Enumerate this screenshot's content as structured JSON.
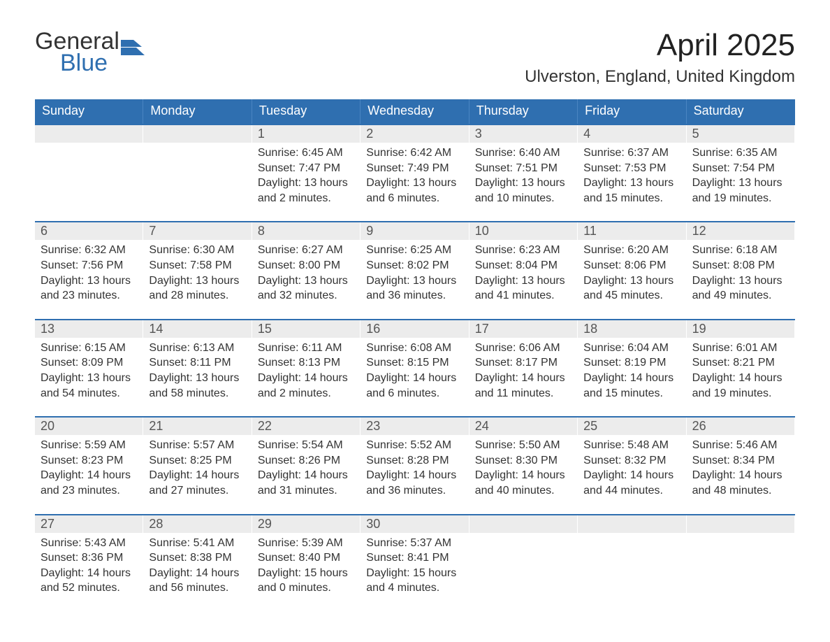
{
  "logo": {
    "word1": "General",
    "word2": "Blue",
    "flag_color": "#2f6fb0"
  },
  "title": "April 2025",
  "location": "Ulverston, England, United Kingdom",
  "colors": {
    "header_bg": "#2f6fb0",
    "header_text": "#ffffff",
    "daynum_bg": "#ececec",
    "daynum_text": "#555555",
    "body_text": "#333333",
    "week_border": "#2f6fb0",
    "background": "#ffffff"
  },
  "weekdays": [
    "Sunday",
    "Monday",
    "Tuesday",
    "Wednesday",
    "Thursday",
    "Friday",
    "Saturday"
  ],
  "weeks": [
    [
      {
        "day": "",
        "lines": []
      },
      {
        "day": "",
        "lines": []
      },
      {
        "day": "1",
        "lines": [
          "Sunrise: 6:45 AM",
          "Sunset: 7:47 PM",
          "Daylight: 13 hours and 2 minutes."
        ]
      },
      {
        "day": "2",
        "lines": [
          "Sunrise: 6:42 AM",
          "Sunset: 7:49 PM",
          "Daylight: 13 hours and 6 minutes."
        ]
      },
      {
        "day": "3",
        "lines": [
          "Sunrise: 6:40 AM",
          "Sunset: 7:51 PM",
          "Daylight: 13 hours and 10 minutes."
        ]
      },
      {
        "day": "4",
        "lines": [
          "Sunrise: 6:37 AM",
          "Sunset: 7:53 PM",
          "Daylight: 13 hours and 15 minutes."
        ]
      },
      {
        "day": "5",
        "lines": [
          "Sunrise: 6:35 AM",
          "Sunset: 7:54 PM",
          "Daylight: 13 hours and 19 minutes."
        ]
      }
    ],
    [
      {
        "day": "6",
        "lines": [
          "Sunrise: 6:32 AM",
          "Sunset: 7:56 PM",
          "Daylight: 13 hours and 23 minutes."
        ]
      },
      {
        "day": "7",
        "lines": [
          "Sunrise: 6:30 AM",
          "Sunset: 7:58 PM",
          "Daylight: 13 hours and 28 minutes."
        ]
      },
      {
        "day": "8",
        "lines": [
          "Sunrise: 6:27 AM",
          "Sunset: 8:00 PM",
          "Daylight: 13 hours and 32 minutes."
        ]
      },
      {
        "day": "9",
        "lines": [
          "Sunrise: 6:25 AM",
          "Sunset: 8:02 PM",
          "Daylight: 13 hours and 36 minutes."
        ]
      },
      {
        "day": "10",
        "lines": [
          "Sunrise: 6:23 AM",
          "Sunset: 8:04 PM",
          "Daylight: 13 hours and 41 minutes."
        ]
      },
      {
        "day": "11",
        "lines": [
          "Sunrise: 6:20 AM",
          "Sunset: 8:06 PM",
          "Daylight: 13 hours and 45 minutes."
        ]
      },
      {
        "day": "12",
        "lines": [
          "Sunrise: 6:18 AM",
          "Sunset: 8:08 PM",
          "Daylight: 13 hours and 49 minutes."
        ]
      }
    ],
    [
      {
        "day": "13",
        "lines": [
          "Sunrise: 6:15 AM",
          "Sunset: 8:09 PM",
          "Daylight: 13 hours and 54 minutes."
        ]
      },
      {
        "day": "14",
        "lines": [
          "Sunrise: 6:13 AM",
          "Sunset: 8:11 PM",
          "Daylight: 13 hours and 58 minutes."
        ]
      },
      {
        "day": "15",
        "lines": [
          "Sunrise: 6:11 AM",
          "Sunset: 8:13 PM",
          "Daylight: 14 hours and 2 minutes."
        ]
      },
      {
        "day": "16",
        "lines": [
          "Sunrise: 6:08 AM",
          "Sunset: 8:15 PM",
          "Daylight: 14 hours and 6 minutes."
        ]
      },
      {
        "day": "17",
        "lines": [
          "Sunrise: 6:06 AM",
          "Sunset: 8:17 PM",
          "Daylight: 14 hours and 11 minutes."
        ]
      },
      {
        "day": "18",
        "lines": [
          "Sunrise: 6:04 AM",
          "Sunset: 8:19 PM",
          "Daylight: 14 hours and 15 minutes."
        ]
      },
      {
        "day": "19",
        "lines": [
          "Sunrise: 6:01 AM",
          "Sunset: 8:21 PM",
          "Daylight: 14 hours and 19 minutes."
        ]
      }
    ],
    [
      {
        "day": "20",
        "lines": [
          "Sunrise: 5:59 AM",
          "Sunset: 8:23 PM",
          "Daylight: 14 hours and 23 minutes."
        ]
      },
      {
        "day": "21",
        "lines": [
          "Sunrise: 5:57 AM",
          "Sunset: 8:25 PM",
          "Daylight: 14 hours and 27 minutes."
        ]
      },
      {
        "day": "22",
        "lines": [
          "Sunrise: 5:54 AM",
          "Sunset: 8:26 PM",
          "Daylight: 14 hours and 31 minutes."
        ]
      },
      {
        "day": "23",
        "lines": [
          "Sunrise: 5:52 AM",
          "Sunset: 8:28 PM",
          "Daylight: 14 hours and 36 minutes."
        ]
      },
      {
        "day": "24",
        "lines": [
          "Sunrise: 5:50 AM",
          "Sunset: 8:30 PM",
          "Daylight: 14 hours and 40 minutes."
        ]
      },
      {
        "day": "25",
        "lines": [
          "Sunrise: 5:48 AM",
          "Sunset: 8:32 PM",
          "Daylight: 14 hours and 44 minutes."
        ]
      },
      {
        "day": "26",
        "lines": [
          "Sunrise: 5:46 AM",
          "Sunset: 8:34 PM",
          "Daylight: 14 hours and 48 minutes."
        ]
      }
    ],
    [
      {
        "day": "27",
        "lines": [
          "Sunrise: 5:43 AM",
          "Sunset: 8:36 PM",
          "Daylight: 14 hours and 52 minutes."
        ]
      },
      {
        "day": "28",
        "lines": [
          "Sunrise: 5:41 AM",
          "Sunset: 8:38 PM",
          "Daylight: 14 hours and 56 minutes."
        ]
      },
      {
        "day": "29",
        "lines": [
          "Sunrise: 5:39 AM",
          "Sunset: 8:40 PM",
          "Daylight: 15 hours and 0 minutes."
        ]
      },
      {
        "day": "30",
        "lines": [
          "Sunrise: 5:37 AM",
          "Sunset: 8:41 PM",
          "Daylight: 15 hours and 4 minutes."
        ]
      },
      {
        "day": "",
        "lines": []
      },
      {
        "day": "",
        "lines": []
      },
      {
        "day": "",
        "lines": []
      }
    ]
  ]
}
